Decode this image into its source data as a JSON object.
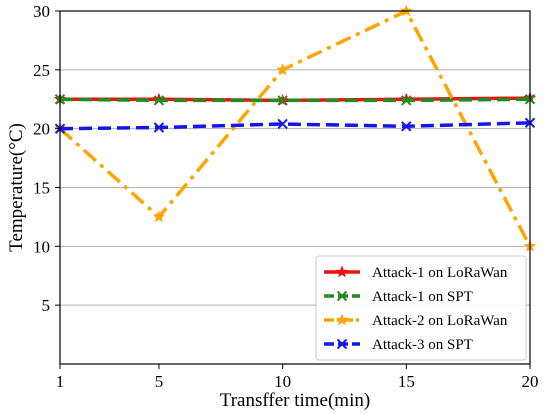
{
  "chart_data": {
    "type": "line",
    "title": "",
    "xlabel": "Transffer time(min)",
    "ylabel": "Temperature(°C)",
    "xlim": [
      1,
      20
    ],
    "ylim": [
      0,
      30
    ],
    "xticks": [
      1,
      5,
      10,
      15,
      20
    ],
    "yticks": [
      5,
      10,
      15,
      20,
      25,
      30
    ],
    "grid": "horizontal",
    "legend_position": "bottom-right",
    "series": [
      {
        "name": "Attack-1 on LoRaWan",
        "color": "#ee1111",
        "dash": "solid",
        "marker": "star",
        "x": [
          1,
          5,
          10,
          15,
          20
        ],
        "y": [
          22.5,
          22.5,
          22.4,
          22.5,
          22.6
        ]
      },
      {
        "name": "Attack-1 on SPT",
        "color": "#228b22",
        "dash": "dashed",
        "marker": "x",
        "x": [
          1,
          5,
          10,
          15,
          20
        ],
        "y": [
          22.5,
          22.4,
          22.4,
          22.4,
          22.5
        ]
      },
      {
        "name": "Attack-2 on LoRaWan",
        "color": "#ffa500",
        "dash": "dashdot",
        "marker": "star",
        "x": [
          1,
          5,
          10,
          15,
          20
        ],
        "y": [
          20.0,
          12.5,
          25.0,
          30.0,
          10.0
        ]
      },
      {
        "name": "Attack-3 on SPT",
        "color": "#1515ee",
        "dash": "dashed",
        "marker": "x",
        "x": [
          1,
          5,
          10,
          15,
          20
        ],
        "y": [
          20.0,
          20.1,
          20.4,
          20.2,
          20.5
        ]
      }
    ]
  }
}
